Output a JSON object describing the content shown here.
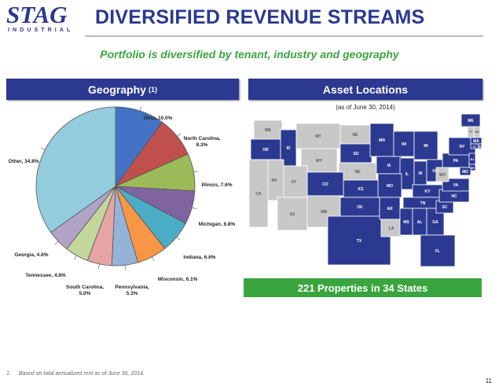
{
  "brand": {
    "name": "STAG",
    "sub": "INDUSTRIAL"
  },
  "title": "DIVERSIFIED REVENUE STREAMS",
  "subtitle": "Portfolio is diversified by tenant, industry and geography",
  "geography_panel": {
    "title": "Geography",
    "superscript": "(1)"
  },
  "asset_panel": {
    "title": "Asset Locations",
    "as_of": "(as of June 30, 2014)"
  },
  "properties_banner": "221 Properties in 34 States",
  "footnote": {
    "number": "1.",
    "text": "Based on total annualized rent as of June 30, 2014."
  },
  "page_number": "11",
  "chart_data": {
    "type": "pie",
    "slices": [
      {
        "label": "Ohio, 10.0%",
        "value": 10.0,
        "color": "#4472c4"
      },
      {
        "label": "North Carolina, 8.3%",
        "value": 8.3,
        "color": "#c0504d"
      },
      {
        "label": "Illinois, 7.6%",
        "value": 7.6,
        "color": "#9bbb59"
      },
      {
        "label": "Michigan, 6.8%",
        "value": 6.8,
        "color": "#8064a2"
      },
      {
        "label": "Indiana, 6.6%",
        "value": 6.6,
        "color": "#4bacc6"
      },
      {
        "label": "Wisconsin, 6.1%",
        "value": 6.1,
        "color": "#f79646"
      },
      {
        "label": "Pennsylvania, 5.3%",
        "value": 5.3,
        "color": "#95b3d7"
      },
      {
        "label": "South Carolina, 5.0%",
        "value": 5.0,
        "color": "#e6a4a4"
      },
      {
        "label": "Tennessee, 4.8%",
        "value": 4.8,
        "color": "#c3d69b"
      },
      {
        "label": "Georgia, 4.6%",
        "value": 4.6,
        "color": "#b3a2c7"
      },
      {
        "label": "Other, 34.8%",
        "value": 34.8,
        "color": "#93cddd"
      }
    ]
  },
  "map": {
    "active_color": "#2b3990",
    "inactive_color": "#c8c8c8",
    "state_labels": [
      "WA",
      "OR",
      "ID",
      "MT",
      "WY",
      "ND",
      "SD",
      "NE",
      "MN",
      "IA",
      "WI",
      "MI",
      "IL",
      "IN",
      "OH",
      "KY",
      "TN",
      "MO",
      "KS",
      "CO",
      "UT",
      "NV",
      "CA",
      "AZ",
      "NM",
      "OK",
      "TX",
      "AR",
      "LA",
      "MS",
      "AL",
      "GA",
      "FL",
      "SC",
      "NC",
      "VA",
      "WV",
      "PA",
      "NY",
      "VT",
      "NH",
      "ME",
      "MA",
      "CT",
      "RI",
      "NJ",
      "DE",
      "MD"
    ]
  }
}
